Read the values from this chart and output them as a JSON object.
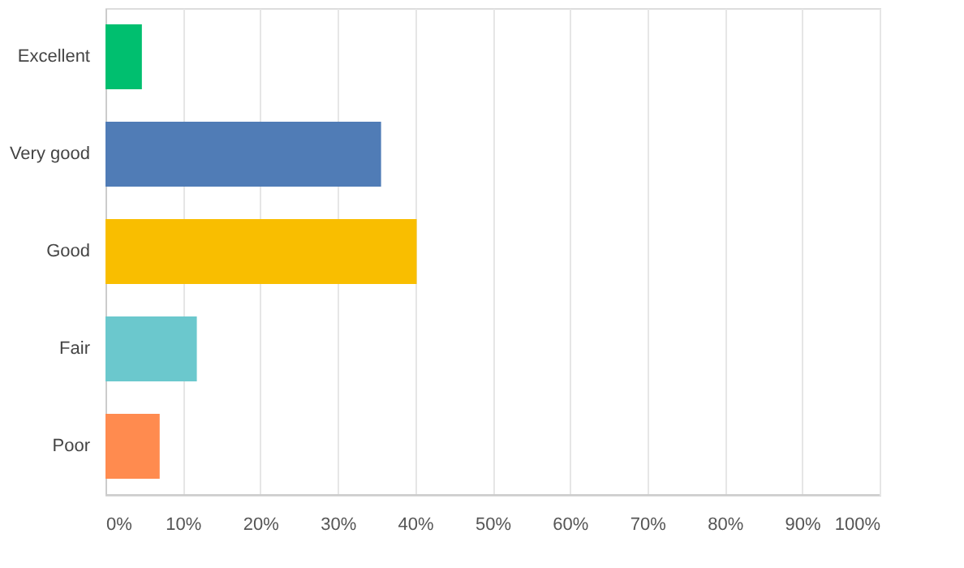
{
  "chart_data": {
    "type": "bar",
    "orientation": "horizontal",
    "categories": [
      "Excellent",
      "Very good",
      "Good",
      "Fair",
      "Poor"
    ],
    "values": [
      4.7,
      35.6,
      40.2,
      11.8,
      7.0
    ],
    "colors": [
      "#00bf6f",
      "#507cb6",
      "#f9be00",
      "#6bc8cd",
      "#ff8b4f"
    ],
    "xlim": [
      0,
      100
    ],
    "xticks": [
      {
        "value": 0,
        "label": "0%"
      },
      {
        "value": 10,
        "label": "10%"
      },
      {
        "value": 20,
        "label": "20%"
      },
      {
        "value": 30,
        "label": "30%"
      },
      {
        "value": 40,
        "label": "40%"
      },
      {
        "value": 50,
        "label": "50%"
      },
      {
        "value": 60,
        "label": "60%"
      },
      {
        "value": 70,
        "label": "70%"
      },
      {
        "value": 80,
        "label": "80%"
      },
      {
        "value": 90,
        "label": "90%"
      },
      {
        "value": 100,
        "label": "100%"
      }
    ],
    "grid": "x"
  }
}
